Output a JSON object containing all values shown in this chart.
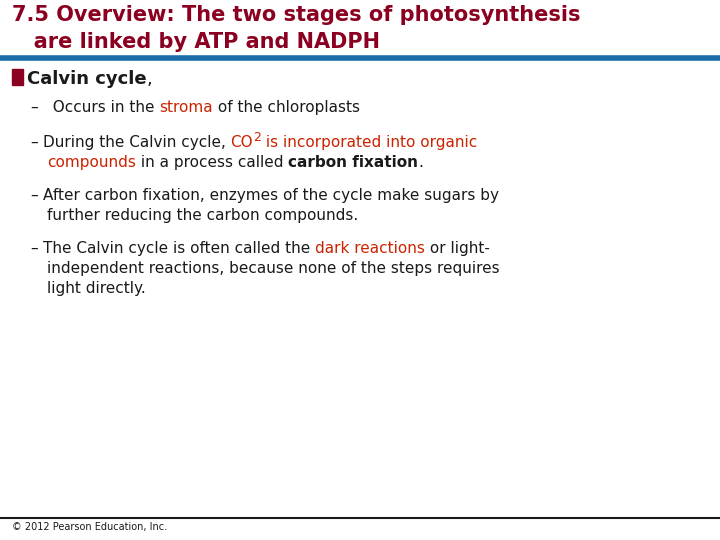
{
  "title_line1": "7.5 Overview: The two stages of photosynthesis",
  "title_line2": "   are linked by ATP and NADPH",
  "title_color": "#8B0020",
  "title_fontsize": 15,
  "header_bar_color": "#1B6CA8",
  "bullet_color": "#8B0020",
  "bullet_label": "Calvin cycle",
  "bullet_fontsize": 13,
  "sub_fontsize": 11,
  "red_color": "#CC2200",
  "black_color": "#1a1a1a",
  "background_color": "#ffffff",
  "footer_text": "© 2012 Pearson Education, Inc.",
  "footer_fontsize": 7,
  "footer_bar_color": "#1a1a1a",
  "bullet_square_color": "#8B0020"
}
